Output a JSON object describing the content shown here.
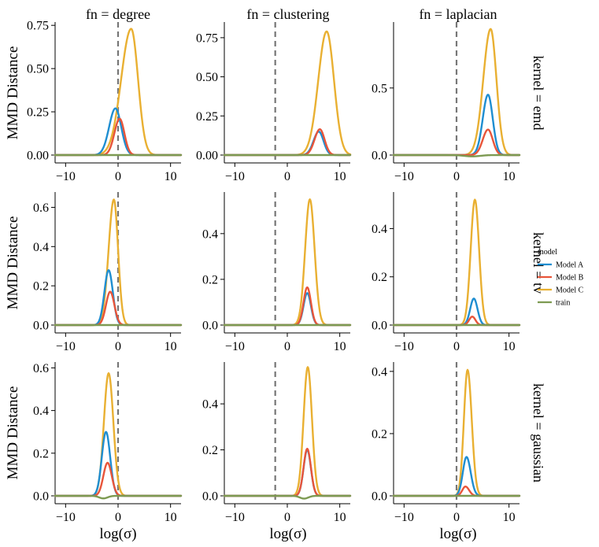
{
  "chart_data": {
    "type": "line",
    "xlabel": "log(σ)",
    "ylabel": "MMD Distance",
    "xlim": [
      -12,
      12
    ],
    "x_ticks": [
      -10,
      0,
      10
    ],
    "column_facet_labels": [
      "fn = degree",
      "fn = clustering",
      "fn = laplacian"
    ],
    "row_facet_labels": [
      "kernel = emd",
      "kernel = tv",
      "kernel = gaussian"
    ],
    "legend": {
      "title": "model",
      "entries": [
        {
          "name": "Model A",
          "color": "#1f8ed1"
        },
        {
          "name": "Model B",
          "color": "#e8553a"
        },
        {
          "name": "Model C",
          "color": "#e9b032"
        },
        {
          "name": "train",
          "color": "#7d9a52"
        }
      ]
    },
    "reference_line": {
      "style": "dashed",
      "color": "#777777",
      "description": "vertical dashed line at selected log(σ)"
    },
    "panels": [
      {
        "row": 0,
        "col": 0,
        "ylim": [
          0,
          0.76
        ],
        "y_ticks": [
          0,
          0.25,
          0.5,
          0.75
        ],
        "y_tick_labels": [
          "0.00",
          "0.25",
          "0.50",
          "0.75"
        ],
        "vline_x": 0,
        "series": [
          {
            "name": "Model A",
            "peak_x": -0.5,
            "peak_y": 0.27,
            "width_left": 1.2,
            "width_right": 1.1,
            "offset": 0
          },
          {
            "name": "Model B",
            "peak_x": 0.3,
            "peak_y": 0.21,
            "width_left": 1.0,
            "width_right": 0.9,
            "offset": 0
          },
          {
            "name": "Model C",
            "peak_x": 2.5,
            "peak_y": 0.73,
            "width_left": 1.9,
            "width_right": 1.3,
            "offset": 0
          },
          {
            "name": "train",
            "peak_x": 0,
            "peak_y": 0.0,
            "width_left": 1,
            "width_right": 1,
            "offset": 0
          }
        ]
      },
      {
        "row": 0,
        "col": 1,
        "ylim": [
          0,
          0.84
        ],
        "y_ticks": [
          0,
          0.25,
          0.5,
          0.75
        ],
        "y_tick_labels": [
          "0.00",
          "0.25",
          "0.50",
          "0.75"
        ],
        "vline_x": -2.3,
        "series": [
          {
            "name": "Model A",
            "peak_x": 6.0,
            "peak_y": 0.15,
            "width_left": 1.0,
            "width_right": 0.9,
            "offset": 0
          },
          {
            "name": "Model B",
            "peak_x": 6.2,
            "peak_y": 0.165,
            "width_left": 1.0,
            "width_right": 0.9,
            "offset": 0
          },
          {
            "name": "Model C",
            "peak_x": 7.5,
            "peak_y": 0.79,
            "width_left": 1.6,
            "width_right": 1.4,
            "offset": 0
          },
          {
            "name": "train",
            "peak_x": 0,
            "peak_y": 0.0,
            "width_left": 1,
            "width_right": 1,
            "offset": 0
          }
        ]
      },
      {
        "row": 0,
        "col": 2,
        "ylim": [
          0,
          0.98
        ],
        "y_ticks": [
          0,
          0.5
        ],
        "y_tick_labels": [
          "0.0",
          "0.5"
        ],
        "vline_x": 0,
        "series": [
          {
            "name": "Model A",
            "peak_x": 6.0,
            "peak_y": 0.45,
            "width_left": 1.0,
            "width_right": 0.9,
            "offset": 0
          },
          {
            "name": "Model B",
            "peak_x": 6.0,
            "peak_y": 0.19,
            "width_left": 1.0,
            "width_right": 0.9,
            "offset": 0
          },
          {
            "name": "Model C",
            "peak_x": 6.5,
            "peak_y": 0.94,
            "width_left": 1.4,
            "width_right": 1.1,
            "offset": 0
          },
          {
            "name": "train",
            "peak_x": 3.0,
            "peak_y": -0.01,
            "width_left": 1.5,
            "width_right": 1.5,
            "offset": 0
          }
        ]
      },
      {
        "row": 1,
        "col": 0,
        "ylim": [
          0,
          0.67
        ],
        "y_ticks": [
          0,
          0.2,
          0.4,
          0.6
        ],
        "y_tick_labels": [
          "0.0",
          "0.2",
          "0.4",
          "0.6"
        ],
        "vline_x": 0,
        "series": [
          {
            "name": "Model A",
            "peak_x": -1.8,
            "peak_y": 0.28,
            "width_left": 0.8,
            "width_right": 0.8,
            "offset": 0
          },
          {
            "name": "Model B",
            "peak_x": -1.5,
            "peak_y": 0.17,
            "width_left": 0.8,
            "width_right": 0.8,
            "offset": 0
          },
          {
            "name": "Model C",
            "peak_x": -0.8,
            "peak_y": 0.64,
            "width_left": 1.0,
            "width_right": 0.8,
            "offset": 0
          },
          {
            "name": "train",
            "peak_x": 0,
            "peak_y": 0.0,
            "width_left": 1,
            "width_right": 1,
            "offset": 0
          }
        ]
      },
      {
        "row": 1,
        "col": 1,
        "ylim": [
          0,
          0.575
        ],
        "y_ticks": [
          0,
          0.2,
          0.4
        ],
        "y_tick_labels": [
          "0.0",
          "0.2",
          "0.4"
        ],
        "vline_x": -2.3,
        "series": [
          {
            "name": "Model A",
            "peak_x": 3.8,
            "peak_y": 0.14,
            "width_left": 0.7,
            "width_right": 0.7,
            "offset": 0
          },
          {
            "name": "Model B",
            "peak_x": 3.8,
            "peak_y": 0.165,
            "width_left": 0.7,
            "width_right": 0.7,
            "offset": 0
          },
          {
            "name": "Model C",
            "peak_x": 4.3,
            "peak_y": 0.55,
            "width_left": 0.9,
            "width_right": 0.9,
            "offset": 0
          },
          {
            "name": "train",
            "peak_x": 0,
            "peak_y": 0.0,
            "width_left": 1,
            "width_right": 1,
            "offset": 0
          }
        ]
      },
      {
        "row": 1,
        "col": 2,
        "ylim": [
          0,
          0.545
        ],
        "y_ticks": [
          0,
          0.2,
          0.4
        ],
        "y_tick_labels": [
          "0.0",
          "0.2",
          "0.4"
        ],
        "vline_x": 0,
        "series": [
          {
            "name": "Model A",
            "peak_x": 3.3,
            "peak_y": 0.11,
            "width_left": 0.7,
            "width_right": 0.7,
            "offset": 0
          },
          {
            "name": "Model B",
            "peak_x": 3.0,
            "peak_y": 0.035,
            "width_left": 0.6,
            "width_right": 0.6,
            "offset": 0
          },
          {
            "name": "Model C",
            "peak_x": 3.5,
            "peak_y": 0.52,
            "width_left": 0.8,
            "width_right": 0.8,
            "offset": 0
          },
          {
            "name": "train",
            "peak_x": 0,
            "peak_y": 0.0,
            "width_left": 1,
            "width_right": 1,
            "offset": 0
          }
        ]
      },
      {
        "row": 2,
        "col": 0,
        "ylim": [
          0,
          0.62
        ],
        "y_ticks": [
          0,
          0.2,
          0.4,
          0.6
        ],
        "y_tick_labels": [
          "0.0",
          "0.2",
          "0.4",
          "0.6"
        ],
        "vline_x": 0,
        "series": [
          {
            "name": "Model A",
            "peak_x": -2.3,
            "peak_y": 0.3,
            "width_left": 0.8,
            "width_right": 0.8,
            "offset": 0
          },
          {
            "name": "Model B",
            "peak_x": -2.0,
            "peak_y": 0.155,
            "width_left": 0.8,
            "width_right": 0.8,
            "offset": 0
          },
          {
            "name": "Model C",
            "peak_x": -1.8,
            "peak_y": 0.575,
            "width_left": 0.9,
            "width_right": 0.9,
            "offset": 0
          },
          {
            "name": "train",
            "peak_x": -2.8,
            "peak_y": -0.012,
            "width_left": 0.8,
            "width_right": 0.8,
            "offset": 0
          }
        ]
      },
      {
        "row": 2,
        "col": 1,
        "ylim": [
          0,
          0.575
        ],
        "y_ticks": [
          0,
          0.2,
          0.4
        ],
        "y_tick_labels": [
          "0.0",
          "0.2",
          "0.4"
        ],
        "vline_x": -2.3,
        "series": [
          {
            "name": "Model A",
            "peak_x": 3.8,
            "peak_y": 0.2,
            "width_left": 0.7,
            "width_right": 0.7,
            "offset": 0
          },
          {
            "name": "Model B",
            "peak_x": 3.8,
            "peak_y": 0.205,
            "width_left": 0.7,
            "width_right": 0.7,
            "offset": 0
          },
          {
            "name": "Model C",
            "peak_x": 3.9,
            "peak_y": 0.56,
            "width_left": 0.8,
            "width_right": 0.8,
            "offset": 0
          },
          {
            "name": "train",
            "peak_x": 3.2,
            "peak_y": -0.012,
            "width_left": 0.8,
            "width_right": 0.8,
            "offset": 0
          }
        ]
      },
      {
        "row": 2,
        "col": 2,
        "ylim": [
          0,
          0.425
        ],
        "y_ticks": [
          0,
          0.2,
          0.4
        ],
        "y_tick_labels": [
          "0.0",
          "0.2",
          "0.4"
        ],
        "vline_x": 0,
        "series": [
          {
            "name": "Model A",
            "peak_x": 1.9,
            "peak_y": 0.125,
            "width_left": 0.7,
            "width_right": 0.8,
            "offset": 0
          },
          {
            "name": "Model B",
            "peak_x": 1.7,
            "peak_y": 0.03,
            "width_left": 0.6,
            "width_right": 0.7,
            "offset": 0
          },
          {
            "name": "Model C",
            "peak_x": 2.1,
            "peak_y": 0.405,
            "width_left": 0.7,
            "width_right": 0.8,
            "offset": 0
          },
          {
            "name": "train",
            "peak_x": 0,
            "peak_y": 0.0,
            "width_left": 1,
            "width_right": 1,
            "offset": 0
          }
        ]
      }
    ]
  }
}
